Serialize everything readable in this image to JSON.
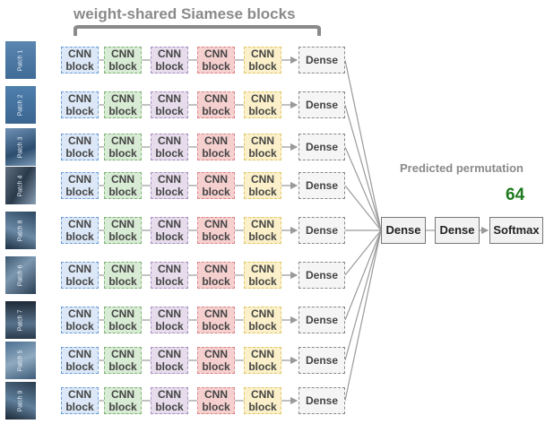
{
  "header": {
    "title": "weight-shared Siamese blocks"
  },
  "output": {
    "label": "Predicted permutation",
    "count": "64"
  },
  "rows": [
    {
      "patch_label": "Patch 1"
    },
    {
      "patch_label": "Patch 2"
    },
    {
      "patch_label": "Patch 3"
    },
    {
      "patch_label": "Patch 4"
    },
    {
      "patch_label": "Patch 8"
    },
    {
      "patch_label": "Patch 6"
    },
    {
      "patch_label": "Patch 7"
    },
    {
      "patch_label": "Patch 5"
    },
    {
      "patch_label": "Patch 9"
    }
  ],
  "cnn_block_label": "CNN block",
  "branch_dense_label": "Dense",
  "head": {
    "dense1": "Dense",
    "dense2": "Dense",
    "softmax": "Softmax"
  },
  "colors": {
    "cnn_block_1": "#dce8f7",
    "cnn_block_2": "#d8ebd4",
    "cnn_block_3": "#e6dcec",
    "cnn_block_4": "#f6cfcf",
    "cnn_block_5": "#fbf0c9",
    "count_text": "#1f7a1f",
    "connector": "#9a9a9a"
  }
}
